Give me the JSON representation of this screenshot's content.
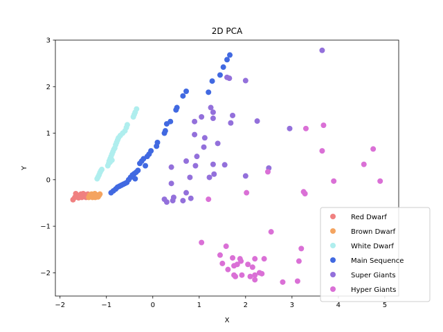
{
  "chart_data": {
    "type": "scatter",
    "title": "2D PCA",
    "xlabel": "X",
    "ylabel": "Y",
    "xlim": [
      -2.1,
      5.3
    ],
    "ylim": [
      -2.5,
      3.0
    ],
    "xticks": [
      -2,
      -1,
      0,
      1,
      2,
      3,
      4,
      5
    ],
    "yticks": [
      -2,
      -1,
      0,
      1,
      2,
      3
    ],
    "xtick_labels": [
      "−2",
      "−1",
      "0",
      "1",
      "2",
      "3",
      "4",
      "5"
    ],
    "ytick_labels": [
      "−2",
      "−1",
      "0",
      "1",
      "2",
      "3"
    ],
    "grid": false,
    "legend_position": "lower-right",
    "series": [
      {
        "name": "Red Dwarf",
        "color": "#f08080",
        "points": [
          [
            -1.72,
            -0.43
          ],
          [
            -1.68,
            -0.38
          ],
          [
            -1.66,
            -0.3
          ],
          [
            -1.62,
            -0.34
          ],
          [
            -1.6,
            -0.39
          ],
          [
            -1.57,
            -0.35
          ],
          [
            -1.55,
            -0.31
          ],
          [
            -1.53,
            -0.38
          ],
          [
            -1.51,
            -0.33
          ],
          [
            -1.5,
            -0.3
          ],
          [
            -1.48,
            -0.36
          ],
          [
            -1.46,
            -0.32
          ],
          [
            -1.44,
            -0.38
          ],
          [
            -1.42,
            -0.34
          ],
          [
            -1.4,
            -0.31
          ],
          [
            -1.38,
            -0.36
          ]
        ]
      },
      {
        "name": "Brown Dwarf",
        "color": "#f4a460",
        "points": [
          [
            -1.38,
            -0.38
          ],
          [
            -1.36,
            -0.33
          ],
          [
            -1.34,
            -0.36
          ],
          [
            -1.32,
            -0.31
          ],
          [
            -1.3,
            -0.38
          ],
          [
            -1.29,
            -0.34
          ],
          [
            -1.27,
            -0.36
          ],
          [
            -1.26,
            -0.32
          ],
          [
            -1.24,
            -0.38
          ],
          [
            -1.22,
            -0.35
          ],
          [
            -1.2,
            -0.33
          ],
          [
            -1.18,
            -0.37
          ],
          [
            -1.16,
            -0.34
          ],
          [
            -1.14,
            -0.31
          ],
          [
            -1.25,
            -0.3
          ]
        ]
      },
      {
        "name": "White Dwarf",
        "color": "#afeeee",
        "points": [
          [
            -1.2,
            0.02
          ],
          [
            -1.18,
            0.06
          ],
          [
            -1.16,
            0.1
          ],
          [
            -1.14,
            0.15
          ],
          [
            -1.12,
            0.19
          ],
          [
            -1.1,
            0.22
          ],
          [
            -0.97,
            0.3
          ],
          [
            -0.95,
            0.35
          ],
          [
            -0.94,
            0.4
          ],
          [
            -0.92,
            0.45
          ],
          [
            -0.9,
            0.5
          ],
          [
            -0.88,
            0.55
          ],
          [
            -0.86,
            0.6
          ],
          [
            -0.84,
            0.65
          ],
          [
            -0.82,
            0.68
          ],
          [
            -0.8,
            0.75
          ],
          [
            -0.78,
            0.8
          ],
          [
            -0.76,
            0.85
          ],
          [
            -0.74,
            0.9
          ],
          [
            -0.7,
            0.95
          ],
          [
            -0.65,
            1.0
          ],
          [
            -0.6,
            1.05
          ],
          [
            -0.57,
            1.12
          ],
          [
            -0.55,
            1.18
          ],
          [
            -0.42,
            1.35
          ],
          [
            -0.4,
            1.4
          ],
          [
            -0.38,
            1.45
          ],
          [
            -0.35,
            1.52
          ],
          [
            -0.92,
            0.38
          ],
          [
            -0.88,
            0.42
          ]
        ]
      },
      {
        "name": "Main Sequence",
        "color": "#4169e1",
        "points": [
          [
            -0.9,
            -0.28
          ],
          [
            -0.85,
            -0.24
          ],
          [
            -0.8,
            -0.2
          ],
          [
            -0.76,
            -0.16
          ],
          [
            -0.72,
            -0.14
          ],
          [
            -0.68,
            -0.12
          ],
          [
            -0.64,
            -0.1
          ],
          [
            -0.6,
            -0.08
          ],
          [
            -0.56,
            -0.06
          ],
          [
            -0.52,
            0.0
          ],
          [
            -0.48,
            0.05
          ],
          [
            -0.44,
            0.1
          ],
          [
            -0.4,
            0.13
          ],
          [
            -0.36,
            0.16
          ],
          [
            -0.32,
            0.2
          ],
          [
            -0.28,
            0.35
          ],
          [
            -0.24,
            0.4
          ],
          [
            -0.2,
            0.45
          ],
          [
            -0.16,
            0.3
          ],
          [
            -0.12,
            0.5
          ],
          [
            -0.08,
            0.55
          ],
          [
            -0.04,
            0.62
          ],
          [
            0.08,
            0.72
          ],
          [
            0.1,
            0.8
          ],
          [
            0.25,
            1.0
          ],
          [
            0.27,
            1.05
          ],
          [
            0.3,
            1.2
          ],
          [
            0.38,
            1.25
          ],
          [
            0.5,
            1.5
          ],
          [
            0.52,
            1.55
          ],
          [
            0.65,
            1.8
          ],
          [
            0.72,
            1.9
          ],
          [
            1.2,
            1.88
          ],
          [
            1.28,
            2.12
          ],
          [
            1.45,
            2.25
          ],
          [
            1.52,
            2.42
          ],
          [
            1.6,
            2.58
          ],
          [
            1.66,
            2.68
          ],
          [
            -0.38,
            0.02
          ]
        ]
      },
      {
        "name": "Super Giants",
        "color": "#9370db",
        "points": [
          [
            0.4,
            0.27
          ],
          [
            0.4,
            -0.08
          ],
          [
            0.3,
            -0.48
          ],
          [
            0.25,
            -0.42
          ],
          [
            0.43,
            -0.45
          ],
          [
            0.45,
            -0.38
          ],
          [
            0.65,
            -0.45
          ],
          [
            0.72,
            -0.28
          ],
          [
            0.72,
            0.4
          ],
          [
            0.8,
            0.05
          ],
          [
            0.82,
            -0.4
          ],
          [
            0.9,
            0.97
          ],
          [
            0.9,
            1.25
          ],
          [
            0.92,
            0.3
          ],
          [
            0.95,
            0.5
          ],
          [
            1.05,
            1.35
          ],
          [
            1.1,
            0.7
          ],
          [
            1.12,
            0.9
          ],
          [
            1.22,
            0.05
          ],
          [
            1.25,
            1.55
          ],
          [
            1.3,
            1.45
          ],
          [
            1.3,
            1.32
          ],
          [
            1.3,
            0.33
          ],
          [
            1.32,
            0.12
          ],
          [
            1.4,
            0.78
          ],
          [
            1.55,
            0.32
          ],
          [
            1.6,
            2.2
          ],
          [
            1.65,
            2.18
          ],
          [
            1.68,
            1.22
          ],
          [
            1.72,
            1.38
          ],
          [
            2.0,
            2.13
          ],
          [
            2.0,
            0.08
          ],
          [
            2.25,
            1.26
          ],
          [
            2.95,
            1.1
          ],
          [
            2.5,
            0.25
          ],
          [
            3.65,
            2.78
          ]
        ]
      },
      {
        "name": "Hyper Giants",
        "color": "#da70d6",
        "points": [
          [
            1.05,
            -1.35
          ],
          [
            1.2,
            -0.42
          ],
          [
            1.45,
            -1.62
          ],
          [
            1.5,
            -1.8
          ],
          [
            1.58,
            -1.43
          ],
          [
            1.62,
            -1.93
          ],
          [
            1.72,
            -1.68
          ],
          [
            1.75,
            -1.85
          ],
          [
            1.75,
            -2.05
          ],
          [
            1.78,
            -2.08
          ],
          [
            1.82,
            -1.82
          ],
          [
            1.88,
            -1.7
          ],
          [
            1.9,
            -1.75
          ],
          [
            1.92,
            -2.05
          ],
          [
            2.02,
            -0.28
          ],
          [
            2.05,
            -1.82
          ],
          [
            2.1,
            -2.08
          ],
          [
            2.15,
            -1.88
          ],
          [
            2.2,
            -1.7
          ],
          [
            2.2,
            -2.15
          ],
          [
            2.2,
            -2.05
          ],
          [
            2.3,
            -2.0
          ],
          [
            2.35,
            -2.02
          ],
          [
            2.4,
            -1.7
          ],
          [
            2.48,
            0.17
          ],
          [
            2.55,
            -1.12
          ],
          [
            2.8,
            -2.2
          ],
          [
            3.12,
            -2.18
          ],
          [
            3.15,
            -1.75
          ],
          [
            3.2,
            -1.48
          ],
          [
            3.25,
            -0.26
          ],
          [
            3.28,
            -0.3
          ],
          [
            3.3,
            1.1
          ],
          [
            3.65,
            0.62
          ],
          [
            3.68,
            1.17
          ],
          [
            3.9,
            -0.03
          ],
          [
            4.55,
            0.33
          ],
          [
            4.75,
            0.66
          ],
          [
            4.9,
            -0.03
          ]
        ]
      }
    ]
  }
}
